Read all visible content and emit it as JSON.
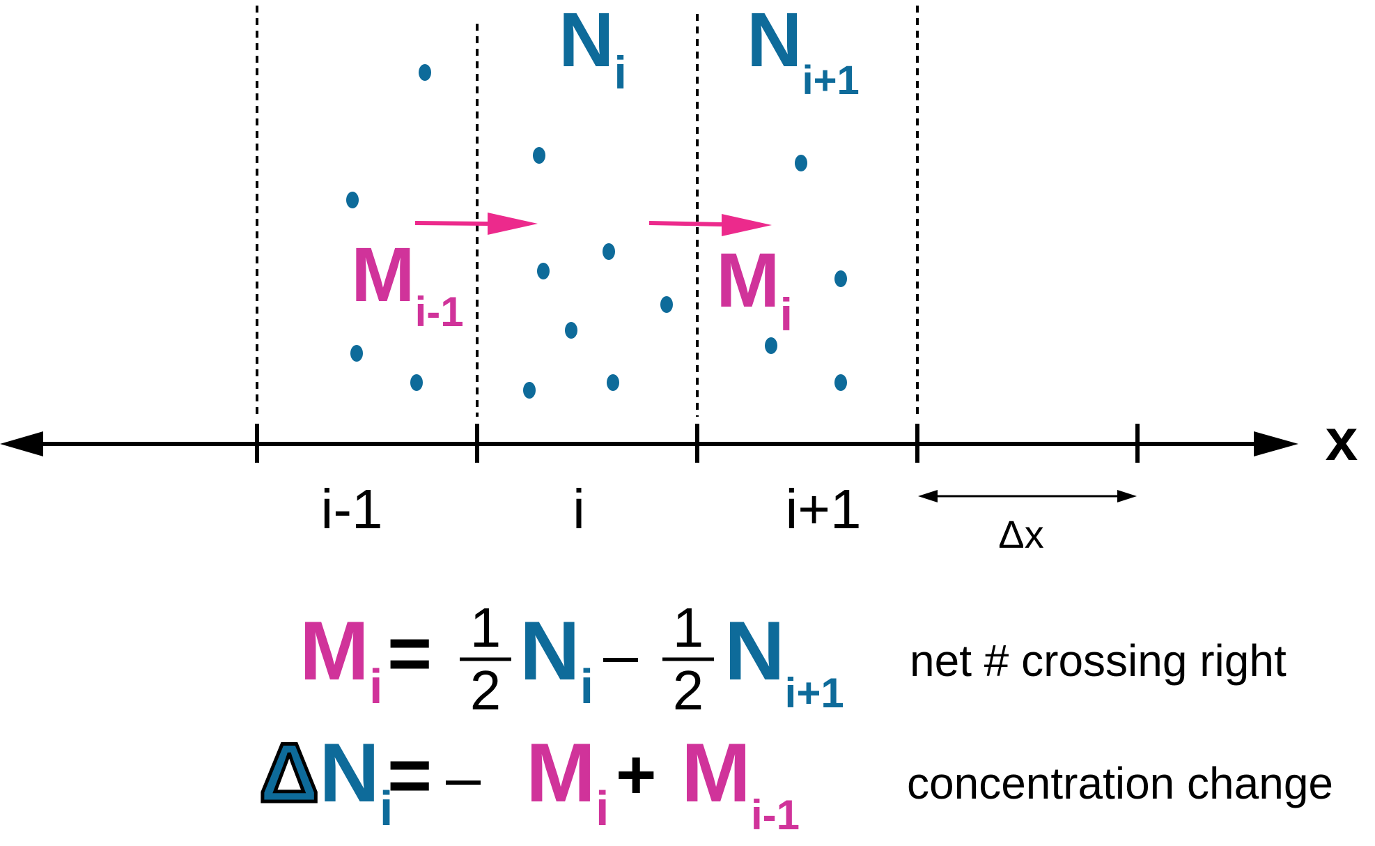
{
  "colors": {
    "blue": "#0e6b9a",
    "magenta": "#d0339a",
    "arrow_pink": "#ec2a8c",
    "ink": "#000000"
  },
  "axis": {
    "label": "x",
    "cells": [
      "i-1",
      "i",
      "i+1"
    ],
    "spacing_label": "Δx"
  },
  "labels": {
    "n": "N",
    "m": "M",
    "sub_i": "i",
    "sub_ip1": "i+1",
    "sub_im1": "i-1"
  },
  "equations": {
    "eq1": {
      "lhs_symbol": "M",
      "lhs_sub": "i",
      "equals": "=",
      "frac_num": "1",
      "frac_den": "2",
      "term1_symbol": "N",
      "term1_sub": "i",
      "minus": "–",
      "term2_symbol": "N",
      "term2_sub": "i+1",
      "caption": "net # crossing right"
    },
    "eq2": {
      "delta": "Δ",
      "lhs_symbol": "N",
      "lhs_sub": "i",
      "equals": "=",
      "minus": "–",
      "term1_symbol": "M",
      "term1_sub": "i",
      "plus": "+",
      "term2_symbol": "M",
      "term2_sub": "i-1",
      "caption": "concentration change"
    }
  }
}
